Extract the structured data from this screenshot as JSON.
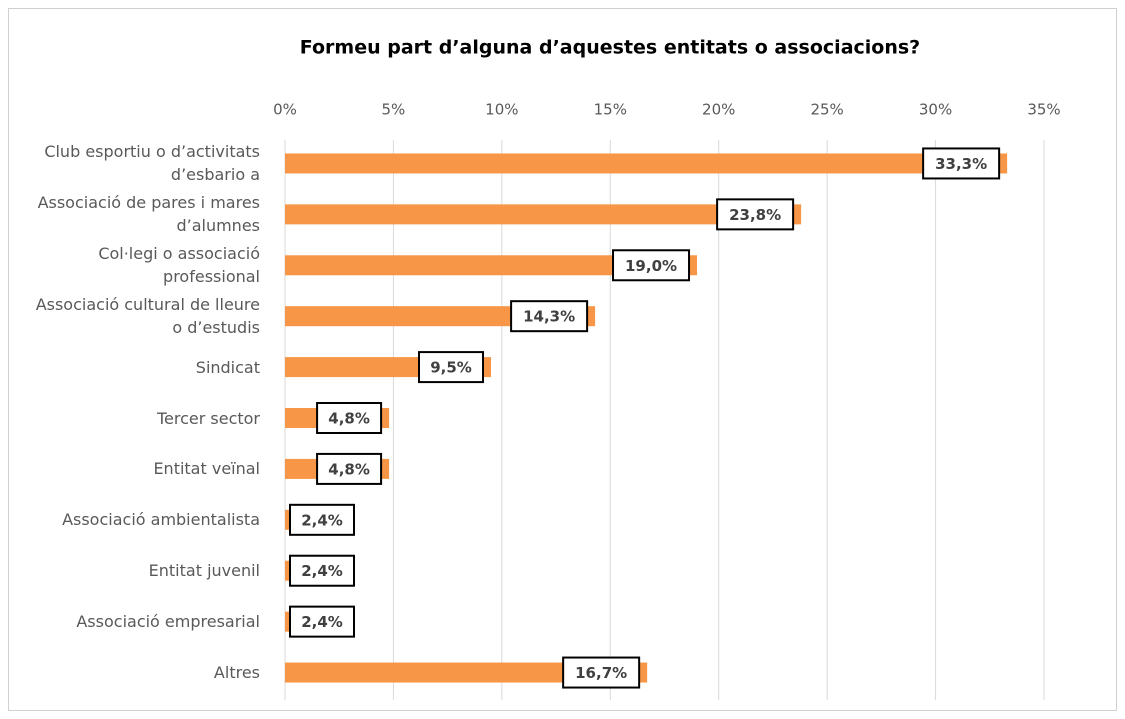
{
  "chart_data": {
    "type": "bar",
    "orientation": "horizontal",
    "title": "Formeu part d’alguna d’aquestes entitats o associacions?",
    "categories": [
      "Club esportiu o d’activitats d’esbario a",
      "Associació de pares i mares d’alumnes",
      "Col·legi o associació professional",
      "Associació cultural de lleure o d’estudis",
      "Sindicat",
      "Tercer sector",
      "Entitat veïnal",
      "Associació ambientalista",
      "Entitat juvenil",
      "Associació empresarial",
      "Altres"
    ],
    "values": [
      33.3,
      23.8,
      19.0,
      14.3,
      9.5,
      4.8,
      4.8,
      2.4,
      2.4,
      2.4,
      16.7
    ],
    "value_labels": [
      "33,3%",
      "23,8%",
      "19,0%",
      "14,3%",
      "9,5%",
      "4,8%",
      "4,8%",
      "2,4%",
      "2,4%",
      "2,4%",
      "16,7%"
    ],
    "color": "#f79646",
    "xlim": [
      0,
      35
    ],
    "xticks": [
      {
        "value": 0,
        "label": "0%"
      },
      {
        "value": 5,
        "label": "5%"
      },
      {
        "value": 10,
        "label": "10%"
      },
      {
        "value": 15,
        "label": "15%"
      },
      {
        "value": 20,
        "label": "20%"
      },
      {
        "value": 25,
        "label": "25%"
      },
      {
        "value": 30,
        "label": "30%"
      },
      {
        "value": 35,
        "label": "35%"
      }
    ],
    "grid": true
  }
}
